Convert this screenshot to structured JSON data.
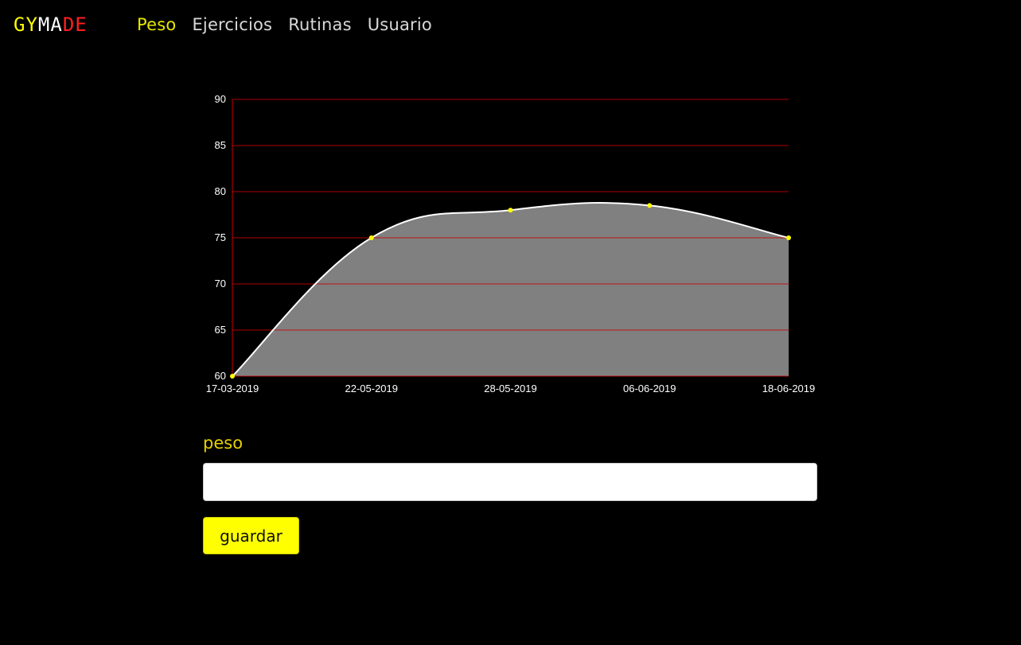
{
  "brand": {
    "part1": "GY",
    "part2": "MA",
    "part3": "DE"
  },
  "nav": {
    "items": [
      {
        "label": "Peso",
        "active": true
      },
      {
        "label": "Ejercicios",
        "active": false
      },
      {
        "label": "Rutinas",
        "active": false
      },
      {
        "label": "Usuario",
        "active": false
      }
    ]
  },
  "colors": {
    "accent": "#ffff00",
    "grid": "#cc0000",
    "area": "#808080",
    "line": "#ffffff",
    "point": "#ffff00"
  },
  "chart_data": {
    "type": "area",
    "x": [
      "17-03-2019",
      "22-05-2019",
      "28-05-2019",
      "06-06-2019",
      "18-06-2019"
    ],
    "values": [
      60,
      75,
      78,
      78.5,
      75
    ],
    "yticks": [
      60,
      65,
      70,
      75,
      80,
      85,
      90
    ],
    "ylim": [
      60,
      90
    ],
    "grid": true,
    "smooth": true
  },
  "form": {
    "label": "peso",
    "value": "",
    "placeholder": "",
    "save_label": "guardar"
  }
}
